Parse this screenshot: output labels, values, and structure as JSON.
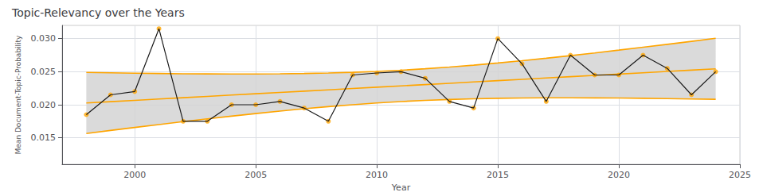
{
  "chart_data": {
    "type": "line",
    "title": "Topic-Relevancy over the Years",
    "x_label": "Year",
    "y_label": "Mean Document-Topic-Probability",
    "x": [
      1998,
      1999,
      2000,
      2001,
      2002,
      2003,
      2004,
      2005,
      2006,
      2007,
      2008,
      2009,
      2010,
      2011,
      2012,
      2013,
      2014,
      2015,
      2016,
      2017,
      2018,
      2019,
      2020,
      2021,
      2022,
      2023,
      2024
    ],
    "series": [
      {
        "type": "band",
        "color": "#D3D3D3",
        "lower": [
          0.0156572,
          0.0161141,
          0.0165647,
          0.0170076,
          0.0174415,
          0.0178644,
          0.018274,
          0.0186674,
          0.0190414,
          0.0193921,
          0.0197151,
          0.0200066,
          0.0202626,
          0.0204807,
          0.0206597,
          0.0208007,
          0.0209064,
          0.0209804,
          0.0210267,
          0.0210499,
          0.0210535,
          0.0210409,
          0.0210152,
          0.0209783,
          0.0209324,
          0.020879,
          0.0208191
        ],
        "upper": [
          0.0248846,
          0.0248247,
          0.0247713,
          0.0247254,
          0.0246885,
          0.0246628,
          0.0246502,
          0.0246538,
          0.024677,
          0.0247233,
          0.0247973,
          0.024903,
          0.025044,
          0.0252231,
          0.0254411,
          0.0256971,
          0.0259886,
          0.0263116,
          0.0266623,
          0.0270363,
          0.0274297,
          0.0278393,
          0.0282622,
          0.0286961,
          0.029139,
          0.0295896,
          0.0300465
        ]
      },
      {
        "type": "line",
        "color": "#FFA500",
        "values": [
          0.0248846,
          0.0248247,
          0.0247713,
          0.0247254,
          0.0246885,
          0.0246628,
          0.0246502,
          0.0246538,
          0.024677,
          0.0247233,
          0.0247973,
          0.024903,
          0.025044,
          0.0252231,
          0.0254411,
          0.0256971,
          0.0259886,
          0.0263116,
          0.0266623,
          0.0270363,
          0.0274297,
          0.0278393,
          0.0282622,
          0.0286961,
          0.029139,
          0.0295896,
          0.0300465
        ]
      },
      {
        "type": "line",
        "color": "#FFA500",
        "values": [
          0.0156572,
          0.0161141,
          0.0165647,
          0.0170076,
          0.0174415,
          0.0178644,
          0.018274,
          0.0186674,
          0.0190414,
          0.0193921,
          0.0197151,
          0.0200066,
          0.0202626,
          0.0204807,
          0.0206597,
          0.0208007,
          0.0209064,
          0.0209804,
          0.0210267,
          0.0210499,
          0.0210535,
          0.0210409,
          0.0210152,
          0.0209783,
          0.0209324,
          0.020879,
          0.0208191
        ]
      },
      {
        "type": "line",
        "color": "#FFA500",
        "values": [
          0.0202709,
          0.0204694,
          0.020668,
          0.0208665,
          0.021065,
          0.0212636,
          0.0214621,
          0.0216606,
          0.0218592,
          0.0220577,
          0.0222562,
          0.0224548,
          0.0226533,
          0.0228519,
          0.0230504,
          0.0232489,
          0.0234475,
          0.023646,
          0.0238445,
          0.0240431,
          0.0242416,
          0.0244401,
          0.0246387,
          0.0248372,
          0.0250357,
          0.0252343,
          0.0254328
        ]
      },
      {
        "type": "line",
        "color": "#1a1a1a",
        "values": [
          0.0185,
          0.0215,
          0.022,
          0.0315,
          0.0175,
          0.0175,
          0.02,
          0.02,
          0.0205,
          0.0195,
          0.0175,
          0.0245,
          0.0248,
          0.025,
          0.024,
          0.0205,
          0.0195,
          0.03,
          0.0262,
          0.0205,
          0.0275,
          0.0245,
          0.0245,
          0.0275,
          0.0255,
          0.0215,
          0.025
        ]
      },
      {
        "type": "scatter",
        "color": "#FFA500",
        "marker": "circle",
        "values": [
          0.0185,
          0.0215,
          0.022,
          0.0315,
          0.0175,
          0.0175,
          0.02,
          0.02,
          0.0205,
          0.0195,
          0.0175,
          0.0245,
          0.0248,
          0.025,
          0.024,
          0.0205,
          0.0195,
          0.03,
          0.0262,
          0.0205,
          0.0275,
          0.0245,
          0.0245,
          0.0275,
          0.0255,
          0.0215,
          0.025
        ]
      }
    ],
    "xlim": [
      1997,
      2025
    ],
    "xticks": [
      2000,
      2005,
      2010,
      2015,
      2020,
      2025
    ],
    "ylim": [
      0.011,
      0.032
    ],
    "yticks": [
      0.015,
      {
        "value": 0.02,
        "label": "0.020"
      },
      0.025,
      {
        "value": 0.03,
        "label": "0.030"
      }
    ],
    "grid": true
  }
}
